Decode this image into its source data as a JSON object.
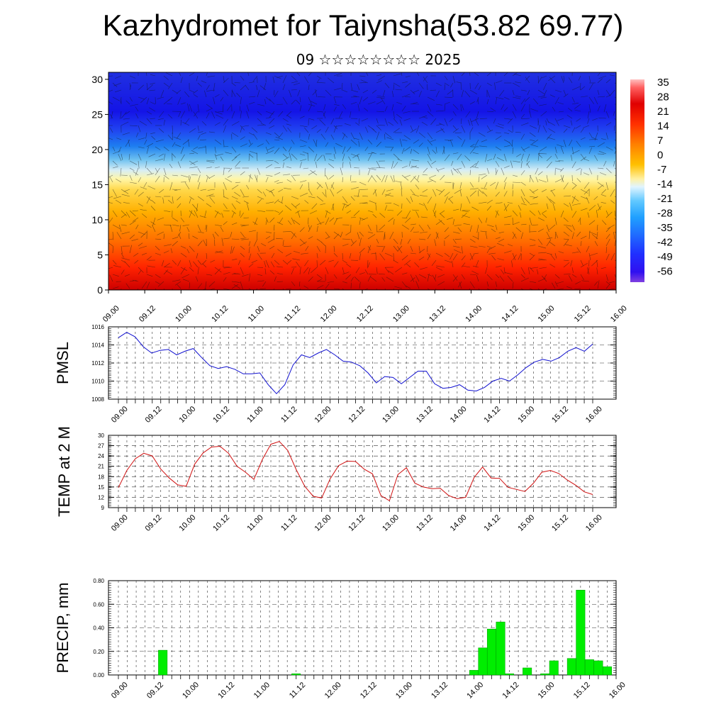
{
  "title": "Kazhydromet for Taiynsha(53.82 69.77)",
  "subtitle": "09 ☆☆☆☆☆☆☆☆ 2025",
  "time_labels": [
    "09.00",
    "09.12",
    "10.00",
    "10.12",
    "11.00",
    "11.12",
    "12.00",
    "12.12",
    "13.00",
    "13.12",
    "14.00",
    "14.12",
    "15.00",
    "15.12",
    "16.00"
  ],
  "colors": {
    "pmsl_line": "#1010d0",
    "temp_line": "#d01010",
    "precip_bar": "#00ee00",
    "precip_edge": "#009900",
    "grid": "#333333"
  },
  "chart_data": [
    {
      "type": "heatmap",
      "ylim": [
        0,
        31
      ],
      "yticks": [
        0,
        5,
        10,
        15,
        20,
        25,
        30
      ],
      "x_tick_labels": [
        "09.00",
        "09.12",
        "10.00",
        "10.12",
        "11.00",
        "11.12",
        "12.00",
        "12.12",
        "13.00",
        "13.12",
        "14.00",
        "14.12",
        "15.00",
        "15.12",
        "16.00"
      ],
      "colorbar_labels": [
        "35",
        "28",
        "21",
        "14",
        "7",
        "0",
        "-7",
        "-14",
        "-21",
        "-28",
        "-35",
        "-42",
        "-49",
        "-56"
      ],
      "colorbar_range": [
        -62,
        38
      ],
      "description_bands": [
        {
          "level": 0,
          "value": 25
        },
        {
          "level": 5,
          "value": 18
        },
        {
          "level": 10,
          "value": 8
        },
        {
          "level": 15,
          "value": -10
        },
        {
          "level": 20,
          "value": -35
        },
        {
          "level": 25,
          "value": -55
        },
        {
          "level": 30,
          "value": -52
        }
      ]
    },
    {
      "type": "line",
      "ylabel": "PMSL",
      "ylim": [
        1008,
        1016
      ],
      "yticks": [
        1008,
        1010,
        1012,
        1014,
        1016
      ],
      "x_tick_labels": [
        "09.00",
        "09.12",
        "10.00",
        "10.12",
        "11.00",
        "11.12",
        "12.00",
        "12.12",
        "13.00",
        "13.12",
        "14.00",
        "14.12",
        "15.00",
        "15.12",
        "16.00"
      ],
      "series": [
        {
          "values": [
            1014.8,
            1015.4,
            1014.9,
            1013.8,
            1013.1,
            1013.4,
            1013.5,
            1012.9,
            1013.3,
            1013.6,
            1012.6,
            1011.7,
            1011.4,
            1011.6,
            1011.3,
            1010.8,
            1010.8,
            1010.9,
            1009.6,
            1008.6,
            1009.6,
            1011.8,
            1012.9,
            1012.6,
            1013.1,
            1013.5,
            1012.9,
            1012.2,
            1012.1,
            1011.7,
            1010.9,
            1009.8,
            1010.5,
            1010.4,
            1009.7,
            1010.4,
            1011.1,
            1011.1,
            1009.7,
            1009.2,
            1009.3,
            1009.6,
            1009.0,
            1008.9,
            1009.3,
            1010.0,
            1010.3,
            1010.0,
            1010.7,
            1011.5,
            1012.1,
            1012.4,
            1012.2,
            1012.6,
            1013.3,
            1013.7,
            1013.3,
            1014.1
          ]
        }
      ]
    },
    {
      "type": "line",
      "ylabel": "TEMP at 2 M",
      "ylim": [
        9,
        30
      ],
      "yticks": [
        9,
        12,
        15,
        18,
        21,
        24,
        27,
        30
      ],
      "x_tick_labels": [
        "09.00",
        "09.12",
        "10.00",
        "10.12",
        "11.00",
        "11.12",
        "12.00",
        "12.12",
        "13.00",
        "13.12",
        "14.00",
        "14.12",
        "15.00",
        "15.12",
        "16.00"
      ],
      "series": [
        {
          "values": [
            14.8,
            19.8,
            23.2,
            24.8,
            24.0,
            20.2,
            17.6,
            15.6,
            15.2,
            21.6,
            24.9,
            26.6,
            26.8,
            24.8,
            21.0,
            19.3,
            17.2,
            23.0,
            27.4,
            28.2,
            25.6,
            20.0,
            15.2,
            12.3,
            11.8,
            17.4,
            21.2,
            22.5,
            22.4,
            20.2,
            18.8,
            12.5,
            11.0,
            18.6,
            20.6,
            16.1,
            15.0,
            14.5,
            14.6,
            12.5,
            11.6,
            12.0,
            17.8,
            20.8,
            17.6,
            17.5,
            14.9,
            14.3,
            13.7,
            16.1,
            19.3,
            19.8,
            18.9,
            17.0,
            15.5,
            13.6,
            12.8
          ]
        }
      ]
    },
    {
      "type": "bar",
      "ylabel": "PRECIP, mm",
      "ylim": [
        0,
        0.8
      ],
      "yticks": [
        "0.00",
        "0.20",
        "0.40",
        "0.60",
        "0.80"
      ],
      "x_tick_labels": [
        "09.00",
        "09.12",
        "10.00",
        "10.12",
        "11.00",
        "11.12",
        "12.00",
        "12.12",
        "13.00",
        "13.12",
        "14.00",
        "14.12",
        "15.00",
        "15.12",
        "16.00"
      ],
      "bars": [
        {
          "t": 5,
          "value": 0.21
        },
        {
          "t": 20,
          "value": 0.01
        },
        {
          "t": 40,
          "value": 0.04
        },
        {
          "t": 41,
          "value": 0.23
        },
        {
          "t": 42,
          "value": 0.39
        },
        {
          "t": 43,
          "value": 0.45
        },
        {
          "t": 44,
          "value": 0.01
        },
        {
          "t": 46,
          "value": 0.06
        },
        {
          "t": 48,
          "value": 0.01
        },
        {
          "t": 49,
          "value": 0.12
        },
        {
          "t": 51,
          "value": 0.14
        },
        {
          "t": 52,
          "value": 0.72
        },
        {
          "t": 53,
          "value": 0.13
        },
        {
          "t": 54,
          "value": 0.12
        },
        {
          "t": 55,
          "value": 0.07
        }
      ]
    }
  ]
}
